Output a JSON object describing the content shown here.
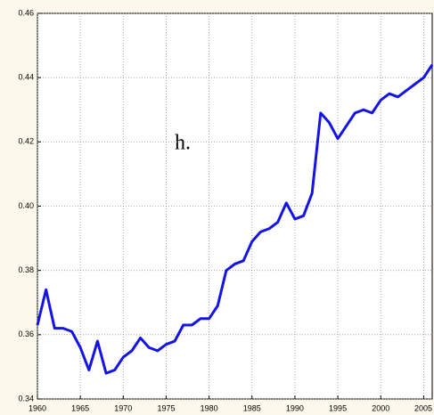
{
  "chart_data": {
    "type": "line",
    "annotation": "h.",
    "x": [
      1960,
      1961,
      1962,
      1963,
      1964,
      1965,
      1966,
      1967,
      1968,
      1969,
      1970,
      1971,
      1972,
      1973,
      1974,
      1975,
      1976,
      1977,
      1978,
      1979,
      1980,
      1981,
      1982,
      1983,
      1984,
      1985,
      1986,
      1987,
      1988,
      1989,
      1990,
      1991,
      1992,
      1993,
      1994,
      1995,
      1996,
      1997,
      1998,
      1999,
      2000,
      2001,
      2002,
      2003,
      2004,
      2005,
      2006
    ],
    "series": [
      {
        "color": "#1414e6",
        "values": [
          0.363,
          0.374,
          0.362,
          0.362,
          0.361,
          0.356,
          0.349,
          0.358,
          0.348,
          0.349,
          0.353,
          0.355,
          0.359,
          0.356,
          0.355,
          0.357,
          0.358,
          0.363,
          0.363,
          0.365,
          0.365,
          0.369,
          0.38,
          0.382,
          0.383,
          0.389,
          0.392,
          0.393,
          0.395,
          0.401,
          0.396,
          0.397,
          0.404,
          0.429,
          0.426,
          0.421,
          0.425,
          0.429,
          0.43,
          0.429,
          0.433,
          0.435,
          0.434,
          0.436,
          0.438,
          0.44,
          0.444
        ]
      }
    ],
    "xlim": [
      1960,
      2006
    ],
    "xticks": [
      1960,
      1965,
      1970,
      1975,
      1980,
      1985,
      1990,
      1995,
      2000,
      2005
    ],
    "ylim": [
      0.34,
      0.46
    ],
    "yticks": [
      0.34,
      0.36,
      0.38,
      {
        "value": 0.4,
        "label": "0.40"
      },
      0.42,
      0.44,
      0.46
    ],
    "grid": true
  }
}
